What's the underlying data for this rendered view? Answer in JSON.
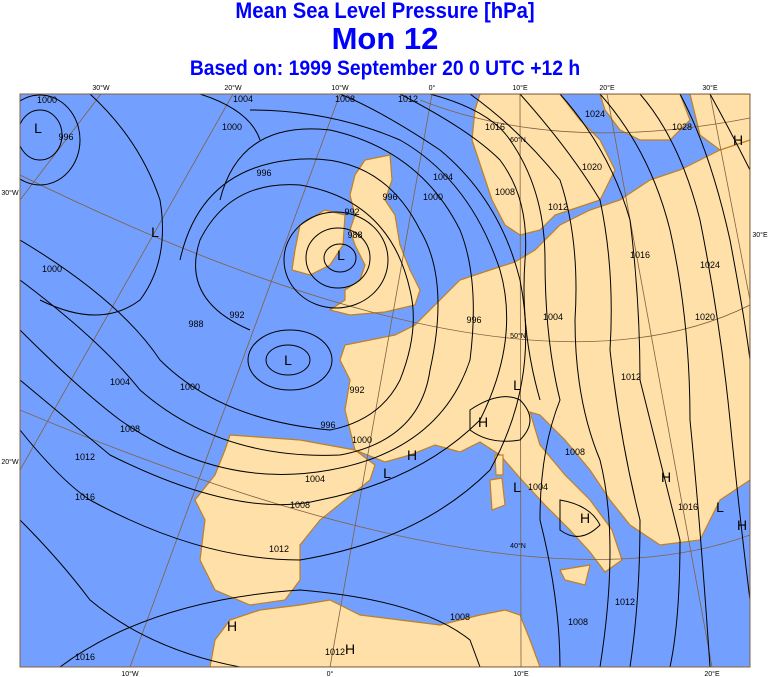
{
  "header": {
    "title": "Mean Sea Level Pressure [hPa]",
    "day": "Mon 12",
    "based_on": "Based on: 1999 September 20   0 UTC  +12 h"
  },
  "colors": {
    "title": "#0000ff",
    "sea": "#73a0ff",
    "land": "#ffe0a8",
    "coast": "#c08020",
    "graticule": "#806040",
    "isobar": "#000000"
  },
  "axes": {
    "top_labels": [
      "30°W",
      "20°W",
      "10°W",
      "0°",
      "10°E",
      "20°E",
      "30°E"
    ],
    "bottom_labels": [
      "10°W",
      "0°",
      "10°E",
      "20°E"
    ],
    "left_labels": [
      "30°W",
      "20°W"
    ],
    "right_labels": [
      "30°E"
    ],
    "parallel_labels": [
      "60°N",
      "50°N",
      "40°N"
    ]
  },
  "isobar_labels": [
    "1000",
    "996",
    "1000",
    "1004",
    "1008",
    "1012",
    "996",
    "1016",
    "1024",
    "1028",
    "1020",
    "1012",
    "1008",
    "1004",
    "1000",
    "996",
    "992",
    "988",
    "1000",
    "988",
    "992",
    "996",
    "1004",
    "1016",
    "1024",
    "1020",
    "1012",
    "1004",
    "1000",
    "992",
    "996",
    "1008",
    "1000",
    "1012",
    "1004",
    "1008",
    "1016",
    "1012",
    "1008",
    "1004",
    "1016",
    "1012",
    "1008",
    "1008",
    "1016",
    "1012"
  ],
  "pressure_centers": [
    "L",
    "L",
    "L",
    "L",
    "L",
    "H",
    "H",
    "L",
    "L",
    "H",
    "H",
    "L",
    "H",
    "H",
    "H",
    "H"
  ]
}
